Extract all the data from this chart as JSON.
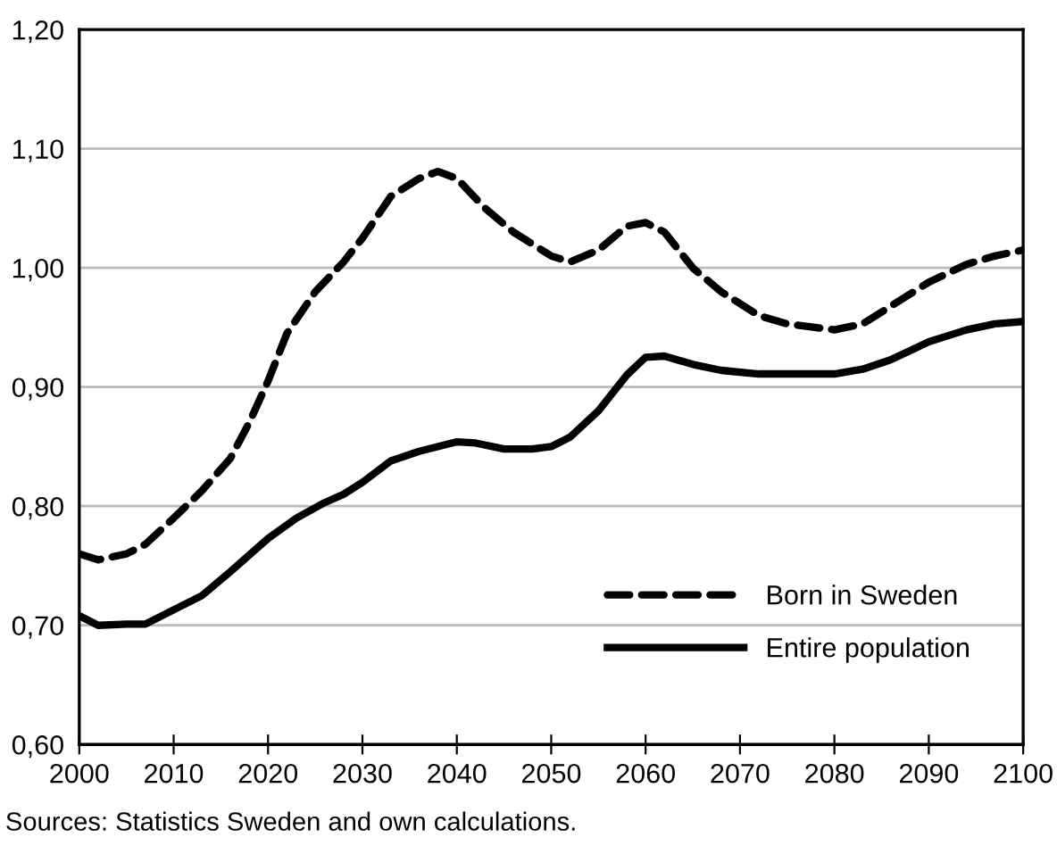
{
  "chart_data": {
    "type": "line",
    "xlim": [
      2000,
      2100
    ],
    "ylim": [
      0.6,
      1.2
    ],
    "xticks": [
      2000,
      2010,
      2020,
      2030,
      2040,
      2050,
      2060,
      2070,
      2080,
      2090,
      2100
    ],
    "yticks": [
      {
        "value": 0.6,
        "label": "0,60"
      },
      {
        "value": 0.7,
        "label": "0,70"
      },
      {
        "value": 0.8,
        "label": "0,80"
      },
      {
        "value": 0.9,
        "label": "0,90"
      },
      {
        "value": 1.0,
        "label": "1,00"
      },
      {
        "value": 1.1,
        "label": "1,10"
      },
      {
        "value": 1.2,
        "label": "1,20"
      }
    ],
    "grid": "y",
    "legend": "bottom right",
    "marker": "none",
    "annotations": [
      "Sources: Statistics Sweden and own calculations."
    ],
    "series": [
      {
        "name": "Born in Sweden",
        "color": "#000000",
        "line_style": "dashed",
        "x": [
          2000,
          2002,
          2005,
          2007,
          2010,
          2013,
          2016,
          2018,
          2020,
          2022,
          2025,
          2028,
          2030,
          2033,
          2036,
          2038,
          2040,
          2043,
          2046,
          2050,
          2052,
          2055,
          2058,
          2060,
          2062,
          2065,
          2068,
          2072,
          2075,
          2080,
          2083,
          2086,
          2090,
          2094,
          2097,
          2100
        ],
        "values": [
          0.76,
          0.755,
          0.76,
          0.768,
          0.79,
          0.813,
          0.84,
          0.87,
          0.905,
          0.945,
          0.98,
          1.005,
          1.025,
          1.06,
          1.075,
          1.081,
          1.075,
          1.05,
          1.03,
          1.01,
          1.005,
          1.015,
          1.035,
          1.038,
          1.03,
          1.0,
          0.98,
          0.96,
          0.953,
          0.948,
          0.953,
          0.968,
          0.988,
          1.003,
          1.01,
          1.015
        ]
      },
      {
        "name": "Entire population",
        "color": "#000000",
        "line_style": "solid",
        "x": [
          2000,
          2002,
          2005,
          2007,
          2010,
          2013,
          2016,
          2020,
          2023,
          2026,
          2028,
          2030,
          2033,
          2036,
          2040,
          2042,
          2045,
          2048,
          2050,
          2052,
          2055,
          2058,
          2060,
          2062,
          2065,
          2068,
          2072,
          2075,
          2080,
          2083,
          2086,
          2090,
          2094,
          2097,
          2100
        ],
        "values": [
          0.708,
          0.7,
          0.701,
          0.701,
          0.713,
          0.725,
          0.745,
          0.773,
          0.79,
          0.803,
          0.81,
          0.82,
          0.838,
          0.846,
          0.854,
          0.853,
          0.848,
          0.848,
          0.85,
          0.858,
          0.88,
          0.91,
          0.925,
          0.926,
          0.919,
          0.914,
          0.911,
          0.911,
          0.911,
          0.915,
          0.923,
          0.938,
          0.948,
          0.953,
          0.955
        ]
      }
    ]
  }
}
